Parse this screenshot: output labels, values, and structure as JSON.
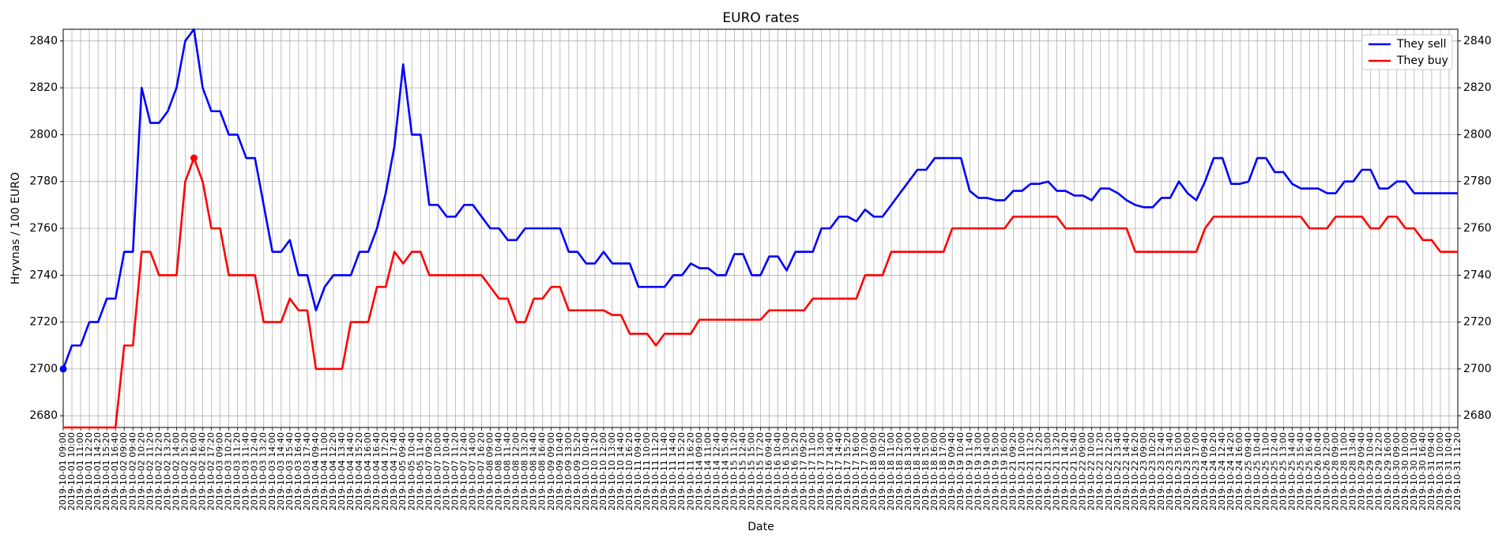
{
  "chart_data": {
    "type": "line",
    "title": "EURO rates",
    "x_label": "Date",
    "y_label": "Hryvnas / 100 EURO",
    "categories": [
      "2019-10-01 09:00",
      "2019-10-01 10:00",
      "2019-10-01 11:00",
      "2019-10-01 12:20",
      "2019-10-01 14:20",
      "2019-10-01 15:20",
      "2019-10-01 16:40",
      "2019-10-02 09:00",
      "2019-10-02 09:40",
      "2019-10-02 10:20",
      "2019-10-02 11:20",
      "2019-10-02 12:20",
      "2019-10-02 13:20",
      "2019-10-02 14:00",
      "2019-10-02 15:20",
      "2019-10-02 16:00",
      "2019-10-02 16:40",
      "2019-10-02 17:20",
      "2019-10-03 09:00",
      "2019-10-03 10:20",
      "2019-10-03 11:20",
      "2019-10-03 11:40",
      "2019-10-03 12:40",
      "2019-10-03 13:20",
      "2019-10-03 14:00",
      "2019-10-03 14:40",
      "2019-10-03 15:40",
      "2019-10-03 16:40",
      "2019-10-03 17:40",
      "2019-10-04 09:40",
      "2019-10-04 11:00",
      "2019-10-04 12:20",
      "2019-10-04 13:40",
      "2019-10-04 14:40",
      "2019-10-04 15:20",
      "2019-10-04 16:00",
      "2019-10-04 16:40",
      "2019-10-04 17:20",
      "2019-10-04 17:40",
      "2019-10-05 09:40",
      "2019-10-05 10:40",
      "2019-10-05 11:40",
      "2019-10-07 09:20",
      "2019-10-07 10:00",
      "2019-10-07 10:40",
      "2019-10-07 11:20",
      "2019-10-07 12:40",
      "2019-10-07 14:00",
      "2019-10-07 16:20",
      "2019-10-08 09:00",
      "2019-10-08 10:40",
      "2019-10-08 11:40",
      "2019-10-08 12:00",
      "2019-10-08 13:20",
      "2019-10-08 14:40",
      "2019-10-08 16:40",
      "2019-10-09 09:00",
      "2019-10-09 10:40",
      "2019-10-09 13:00",
      "2019-10-09 15:20",
      "2019-10-10 10:40",
      "2019-10-10 11:20",
      "2019-10-10 12:00",
      "2019-10-10 13:00",
      "2019-10-10 14:40",
      "2019-10-10 16:20",
      "2019-10-11 09:40",
      "2019-10-11 10:00",
      "2019-10-11 11:20",
      "2019-10-11 11:40",
      "2019-10-11 14:40",
      "2019-10-11 15:20",
      "2019-10-11 16:20",
      "2019-10-14 09:00",
      "2019-10-14 11:00",
      "2019-10-14 12:40",
      "2019-10-14 15:40",
      "2019-10-15 11:20",
      "2019-10-15 12:40",
      "2019-10-15 15:00",
      "2019-10-15 17:20",
      "2019-10-16 09:40",
      "2019-10-16 10:40",
      "2019-10-16 13:00",
      "2019-10-16 15:20",
      "2019-10-17 09:20",
      "2019-10-17 11:00",
      "2019-10-17 13:00",
      "2019-10-17 14:00",
      "2019-10-17 14:40",
      "2019-10-17 15:20",
      "2019-10-17 16:00",
      "2019-10-17 17:00",
      "2019-10-18 09:00",
      "2019-10-18 10:20",
      "2019-10-18 11:00",
      "2019-10-18 12:00",
      "2019-10-18 13:00",
      "2019-10-18 14:00",
      "2019-10-18 15:00",
      "2019-10-18 16:00",
      "2019-10-18 17:00",
      "2019-10-19 09:40",
      "2019-10-19 10:40",
      "2019-10-19 11:40",
      "2019-10-19 13:00",
      "2019-10-19 14:00",
      "2019-10-19 15:00",
      "2019-10-19 16:00",
      "2019-10-21 09:20",
      "2019-10-21 10:00",
      "2019-10-21 11:20",
      "2019-10-21 12:20",
      "2019-10-21 13:00",
      "2019-10-21 13:20",
      "2019-10-21 14:20",
      "2019-10-21 15:40",
      "2019-10-22 09:00",
      "2019-10-22 10:00",
      "2019-10-22 11:20",
      "2019-10-22 12:20",
      "2019-10-22 13:40",
      "2019-10-22 14:40",
      "2019-10-22 16:20",
      "2019-10-23 09:00",
      "2019-10-23 10:20",
      "2019-10-23 12:40",
      "2019-10-23 13:40",
      "2019-10-23 15:00",
      "2019-10-23 16:00",
      "2019-10-23 17:00",
      "2019-10-24 09:40",
      "2019-10-24 10:20",
      "2019-10-24 12:40",
      "2019-10-24 14:20",
      "2019-10-24 16:00",
      "2019-10-25 09:40",
      "2019-10-25 10:40",
      "2019-10-25 11:00",
      "2019-10-25 12:40",
      "2019-10-25 13:00",
      "2019-10-25 14:40",
      "2019-10-25 15:40",
      "2019-10-25 16:40",
      "2019-10-26 10:40",
      "2019-10-26 12:00",
      "2019-10-28 09:00",
      "2019-10-28 11:00",
      "2019-10-28 13:40",
      "2019-10-29 09:40",
      "2019-10-29 10:40",
      "2019-10-29 12:20",
      "2019-10-29 16:00",
      "2019-10-30 09:00",
      "2019-10-30 10:00",
      "2019-10-30 11:00",
      "2019-10-30 16:40",
      "2019-10-31 09:40",
      "2019-10-31 10:00",
      "2019-10-31 10:40",
      "2019-10-31 11:20"
    ],
    "series": [
      {
        "name": "They sell",
        "color": "#0000ff",
        "values": [
          2700,
          2710,
          2710,
          2720,
          2720,
          2730,
          2730,
          2750,
          2750,
          2820,
          2805,
          2805,
          2810,
          2820,
          2840,
          2845,
          2820,
          2810,
          2810,
          2800,
          2800,
          2790,
          2790,
          2770,
          2750,
          2750,
          2755,
          2740,
          2740,
          2725,
          2735,
          2740,
          2740,
          2740,
          2750,
          2750,
          2760,
          2775,
          2795,
          2830,
          2800,
          2800,
          2770,
          2770,
          2765,
          2765,
          2770,
          2770,
          2765,
          2760,
          2760,
          2755,
          2755,
          2760,
          2760,
          2760,
          2760,
          2760,
          2750,
          2750,
          2745,
          2745,
          2750,
          2745,
          2745,
          2745,
          2735,
          2735,
          2735,
          2735,
          2740,
          2740,
          2745,
          2743,
          2743,
          2740,
          2740,
          2749,
          2749,
          2740,
          2740,
          2748,
          2748,
          2742,
          2750,
          2750,
          2750,
          2760,
          2760,
          2765,
          2765,
          2763,
          2768,
          2765,
          2765,
          2770,
          2775,
          2780,
          2785,
          2785,
          2790,
          2790,
          2790,
          2790,
          2776,
          2773,
          2773,
          2772,
          2772,
          2776,
          2776,
          2779,
          2779,
          2780,
          2776,
          2776,
          2774,
          2774,
          2772,
          2777,
          2777,
          2775,
          2772,
          2770,
          2769,
          2769,
          2773,
          2773,
          2780,
          2775,
          2772,
          2780,
          2790,
          2790,
          2779,
          2779,
          2780,
          2790,
          2790,
          2784,
          2784,
          2779,
          2777,
          2777,
          2777,
          2775,
          2775,
          2780,
          2780,
          2785,
          2785,
          2777,
          2777,
          2780,
          2780,
          2775,
          2775,
          2775,
          2775,
          2775,
          2775
        ]
      },
      {
        "name": "They buy",
        "color": "#ff0000",
        "values": [
          2675,
          2675,
          2675,
          2675,
          2675,
          2675,
          2675,
          2710,
          2710,
          2750,
          2750,
          2740,
          2740,
          2740,
          2780,
          2790,
          2780,
          2760,
          2760,
          2740,
          2740,
          2740,
          2740,
          2720,
          2720,
          2720,
          2730,
          2725,
          2725,
          2700,
          2700,
          2700,
          2700,
          2720,
          2720,
          2720,
          2735,
          2735,
          2750,
          2745,
          2750,
          2750,
          2740,
          2740,
          2740,
          2740,
          2740,
          2740,
          2740,
          2735,
          2730,
          2730,
          2720,
          2720,
          2730,
          2730,
          2735,
          2735,
          2725,
          2725,
          2725,
          2725,
          2725,
          2723,
          2723,
          2715,
          2715,
          2715,
          2710,
          2715,
          2715,
          2715,
          2715,
          2721,
          2721,
          2721,
          2721,
          2721,
          2721,
          2721,
          2721,
          2725,
          2725,
          2725,
          2725,
          2725,
          2730,
          2730,
          2730,
          2730,
          2730,
          2730,
          2740,
          2740,
          2740,
          2750,
          2750,
          2750,
          2750,
          2750,
          2750,
          2750,
          2760,
          2760,
          2760,
          2760,
          2760,
          2760,
          2760,
          2765,
          2765,
          2765,
          2765,
          2765,
          2765,
          2760,
          2760,
          2760,
          2760,
          2760,
          2760,
          2760,
          2760,
          2750,
          2750,
          2750,
          2750,
          2750,
          2750,
          2750,
          2750,
          2760,
          2765,
          2765,
          2765,
          2765,
          2765,
          2765,
          2765,
          2765,
          2765,
          2765,
          2765,
          2760,
          2760,
          2760,
          2765,
          2765,
          2765,
          2765,
          2760,
          2760,
          2765,
          2765,
          2760,
          2760,
          2755,
          2755,
          2750,
          2750,
          2750
        ]
      }
    ],
    "ylim": [
      2675,
      2845
    ],
    "yticks": [
      2680,
      2700,
      2720,
      2740,
      2760,
      2780,
      2800,
      2820,
      2840
    ],
    "grid": true,
    "legend": "upper right"
  }
}
